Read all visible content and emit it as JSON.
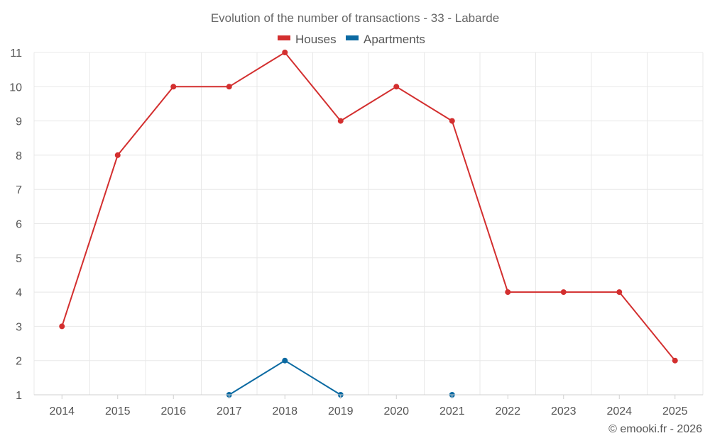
{
  "chart_data": {
    "type": "line",
    "title": "Evolution of the number of transactions - 33 - Labarde",
    "xlabel": "",
    "ylabel": "",
    "categories": [
      "2014",
      "2015",
      "2016",
      "2017",
      "2018",
      "2019",
      "2020",
      "2021",
      "2022",
      "2023",
      "2024",
      "2025"
    ],
    "ylim": [
      1,
      11
    ],
    "yticks": [
      1,
      2,
      3,
      4,
      5,
      6,
      7,
      8,
      9,
      10,
      11
    ],
    "grid": true,
    "legend_position": "top-center",
    "series": [
      {
        "name": "Houses",
        "color": "#d32f2f",
        "values": [
          3,
          8,
          10,
          10,
          11,
          9,
          10,
          9,
          4,
          4,
          4,
          2
        ]
      },
      {
        "name": "Apartments",
        "color": "#0b6aa2",
        "values": [
          null,
          null,
          null,
          1,
          2,
          1,
          null,
          1,
          null,
          null,
          null,
          null
        ]
      }
    ]
  },
  "credit": "© emooki.fr - 2026"
}
